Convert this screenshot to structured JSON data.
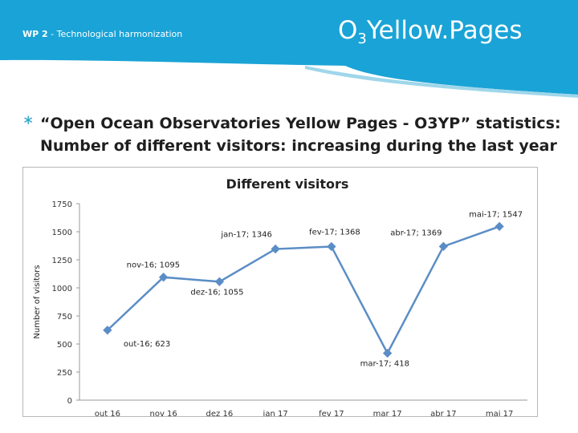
{
  "header": {
    "workpackage": "WP 2",
    "subtitle": " - Technological harmonization",
    "brand_main": "O",
    "brand_sub": "3",
    "brand_rest": "Yellow.Pages"
  },
  "bullet": {
    "marker": "∗",
    "line1": "“Open Ocean Observatories Yellow Pages - O3YP” statistics:",
    "line2": "Number of different visitors: increasing during the last year"
  },
  "colors": {
    "header_bg": "#1aa3d6",
    "line": "#5b8dc5",
    "marker": "#5b8dc5"
  },
  "chart_data": {
    "type": "line",
    "title": "Different visitors",
    "ylabel": "Number of visitors",
    "xlabel": "",
    "ylim": [
      0,
      1750
    ],
    "yticks": [
      0,
      250,
      500,
      750,
      1000,
      1250,
      1500,
      1750
    ],
    "categories": [
      "out 16",
      "nov 16",
      "dez 16",
      "jan 17",
      "fev 17",
      "mar 17",
      "abr 17",
      "mai 17"
    ],
    "values": [
      623,
      1095,
      1055,
      1346,
      1368,
      418,
      1369,
      1547
    ],
    "data_labels": [
      "out-16; 623",
      "nov-16; 1095",
      "dez-16; 1055",
      "jan-17; 1346",
      "fev-17; 1368",
      "mar-17; 418",
      "abr-17; 1369",
      "mai-17; 1547"
    ],
    "grid": false,
    "legend": "none"
  }
}
